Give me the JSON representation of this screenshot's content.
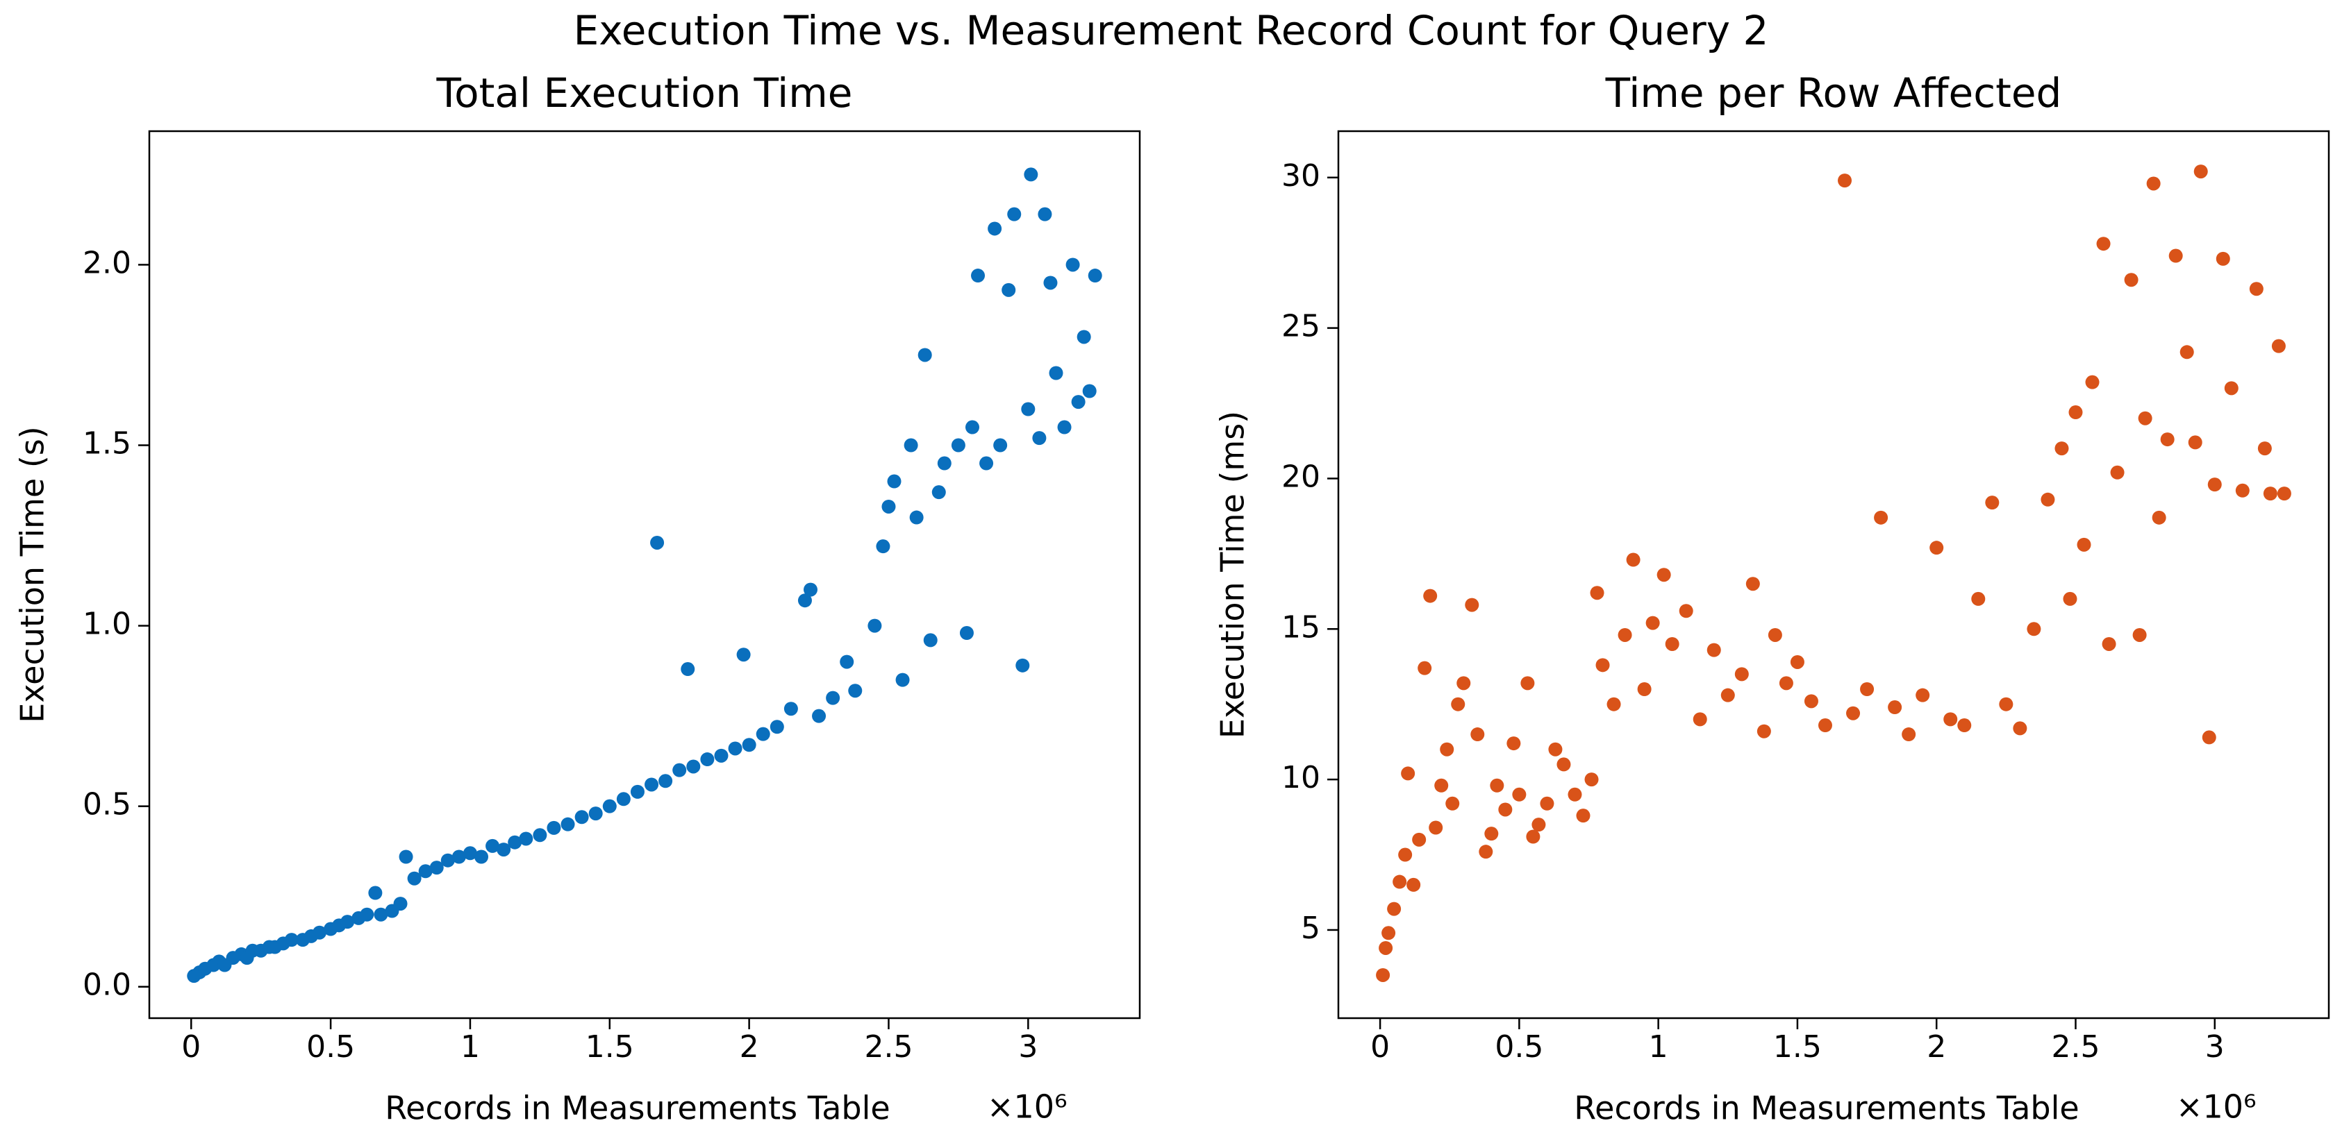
{
  "title": "Execution Time vs. Measurement Record Count for Query 2",
  "chart_data": [
    {
      "type": "scatter",
      "title": "Total Execution Time",
      "x_label": "Records in Measurements Table",
      "x_offset_label": "×10⁶",
      "y_label": "Execution Time (s)",
      "color": "#0a6fbd",
      "xlim": [
        -0.15,
        3.4
      ],
      "ylim": [
        -0.087,
        2.37
      ],
      "xticks": [
        0,
        0.5,
        1,
        1.5,
        2,
        2.5,
        3
      ],
      "yticks": [
        {
          "value": 0,
          "label": "0.0"
        },
        0.5,
        {
          "value": 1,
          "label": "1.0"
        },
        1.5,
        {
          "value": 2,
          "label": "2.0"
        }
      ],
      "x": [
        0.01,
        0.03,
        0.05,
        0.08,
        0.1,
        0.12,
        0.15,
        0.18,
        0.2,
        0.22,
        0.25,
        0.28,
        0.3,
        0.33,
        0.36,
        0.4,
        0.43,
        0.46,
        0.5,
        0.53,
        0.56,
        0.6,
        0.63,
        0.66,
        0.68,
        0.72,
        0.75,
        0.77,
        0.8,
        0.84,
        0.88,
        0.92,
        0.96,
        1.0,
        1.04,
        1.08,
        1.12,
        1.16,
        1.2,
        1.25,
        1.3,
        1.35,
        1.4,
        1.45,
        1.5,
        1.55,
        1.6,
        1.67,
        1.65,
        1.7,
        1.75,
        1.78,
        1.8,
        1.85,
        1.9,
        1.95,
        1.98,
        2.0,
        2.05,
        2.1,
        2.15,
        2.2,
        2.22,
        2.25,
        2.3,
        2.35,
        2.38,
        2.45,
        2.48,
        2.5,
        2.52,
        2.55,
        2.58,
        2.6,
        2.63,
        2.65,
        2.68,
        2.7,
        2.75,
        2.78,
        2.8,
        2.82,
        2.85,
        2.88,
        2.9,
        2.93,
        2.95,
        2.98,
        3.0,
        3.01,
        3.04,
        3.06,
        3.08,
        3.1,
        3.13,
        3.16,
        3.18,
        3.2,
        3.22,
        3.24
      ],
      "values": [
        0.03,
        0.04,
        0.05,
        0.06,
        0.07,
        0.06,
        0.08,
        0.09,
        0.08,
        0.1,
        0.1,
        0.11,
        0.11,
        0.12,
        0.13,
        0.13,
        0.14,
        0.15,
        0.16,
        0.17,
        0.18,
        0.19,
        0.2,
        0.26,
        0.2,
        0.21,
        0.23,
        0.36,
        0.3,
        0.32,
        0.33,
        0.35,
        0.36,
        0.37,
        0.36,
        0.39,
        0.38,
        0.4,
        0.41,
        0.42,
        0.44,
        0.45,
        0.47,
        0.48,
        0.5,
        0.52,
        0.54,
        1.23,
        0.56,
        0.57,
        0.6,
        0.88,
        0.61,
        0.63,
        0.64,
        0.66,
        0.92,
        0.67,
        0.7,
        0.72,
        0.77,
        1.07,
        1.1,
        0.75,
        0.8,
        0.9,
        0.82,
        1.0,
        1.22,
        1.33,
        1.4,
        0.85,
        1.5,
        1.3,
        1.75,
        0.96,
        1.37,
        1.45,
        1.5,
        0.98,
        1.55,
        1.97,
        1.45,
        2.1,
        1.5,
        1.93,
        2.14,
        0.89,
        1.6,
        2.25,
        1.52,
        2.14,
        1.95,
        1.7,
        1.55,
        2.0,
        1.62,
        1.8,
        1.65,
        1.97
      ]
    },
    {
      "type": "scatter",
      "title": "Time per Row Affected",
      "x_label": "Records in Measurements Table",
      "x_offset_label": "×10⁶",
      "y_label": "Execution Time (ms)",
      "color": "#d95319",
      "xlim": [
        -0.15,
        3.41
      ],
      "ylim": [
        2.07,
        31.54
      ],
      "xticks": [
        0,
        0.5,
        1,
        1.5,
        2,
        2.5,
        3
      ],
      "yticks": [
        5,
        10,
        15,
        20,
        25,
        30
      ],
      "x": [
        0.01,
        0.02,
        0.03,
        0.05,
        0.07,
        0.09,
        0.1,
        0.12,
        0.14,
        0.16,
        0.18,
        0.2,
        0.22,
        0.24,
        0.26,
        0.28,
        0.3,
        0.33,
        0.35,
        0.38,
        0.4,
        0.42,
        0.45,
        0.48,
        0.5,
        0.53,
        0.55,
        0.57,
        0.6,
        0.63,
        0.66,
        0.7,
        0.73,
        0.76,
        0.78,
        0.8,
        0.84,
        0.88,
        0.91,
        0.95,
        0.98,
        1.02,
        1.05,
        1.1,
        1.15,
        1.2,
        1.25,
        1.3,
        1.34,
        1.38,
        1.42,
        1.46,
        1.5,
        1.55,
        1.6,
        1.67,
        1.7,
        1.75,
        1.8,
        1.85,
        1.9,
        1.95,
        2.0,
        2.05,
        2.1,
        2.15,
        2.2,
        2.25,
        2.3,
        2.35,
        2.4,
        2.45,
        2.48,
        2.5,
        2.53,
        2.56,
        2.6,
        2.62,
        2.65,
        2.7,
        2.73,
        2.75,
        2.78,
        2.8,
        2.83,
        2.86,
        2.9,
        2.93,
        2.95,
        2.98,
        3.0,
        3.03,
        3.06,
        3.1,
        3.15,
        3.18,
        3.2,
        3.23,
        3.25
      ],
      "values": [
        3.5,
        4.4,
        4.9,
        5.7,
        6.6,
        7.5,
        10.2,
        6.5,
        8.0,
        13.7,
        16.1,
        8.4,
        9.8,
        11.0,
        9.2,
        12.5,
        13.2,
        15.8,
        11.5,
        7.6,
        8.2,
        9.8,
        9.0,
        11.2,
        9.5,
        13.2,
        8.1,
        8.5,
        9.2,
        11.0,
        10.5,
        9.5,
        8.8,
        10.0,
        16.2,
        13.8,
        12.5,
        14.8,
        17.3,
        13.0,
        15.2,
        16.8,
        14.5,
        15.6,
        12.0,
        14.3,
        12.8,
        13.5,
        16.5,
        11.6,
        14.8,
        13.2,
        13.9,
        12.6,
        11.8,
        29.9,
        12.2,
        13.0,
        18.7,
        12.4,
        11.5,
        12.8,
        17.7,
        12.0,
        11.8,
        16.0,
        19.2,
        12.5,
        11.7,
        15.0,
        19.3,
        21.0,
        16.0,
        22.2,
        17.8,
        23.2,
        27.8,
        14.5,
        20.2,
        26.6,
        14.8,
        22.0,
        29.8,
        18.7,
        21.3,
        27.4,
        24.2,
        21.2,
        30.2,
        11.4,
        19.8,
        27.3,
        23.0,
        19.6,
        26.3,
        21.0,
        19.5,
        24.4,
        19.5
      ]
    }
  ]
}
